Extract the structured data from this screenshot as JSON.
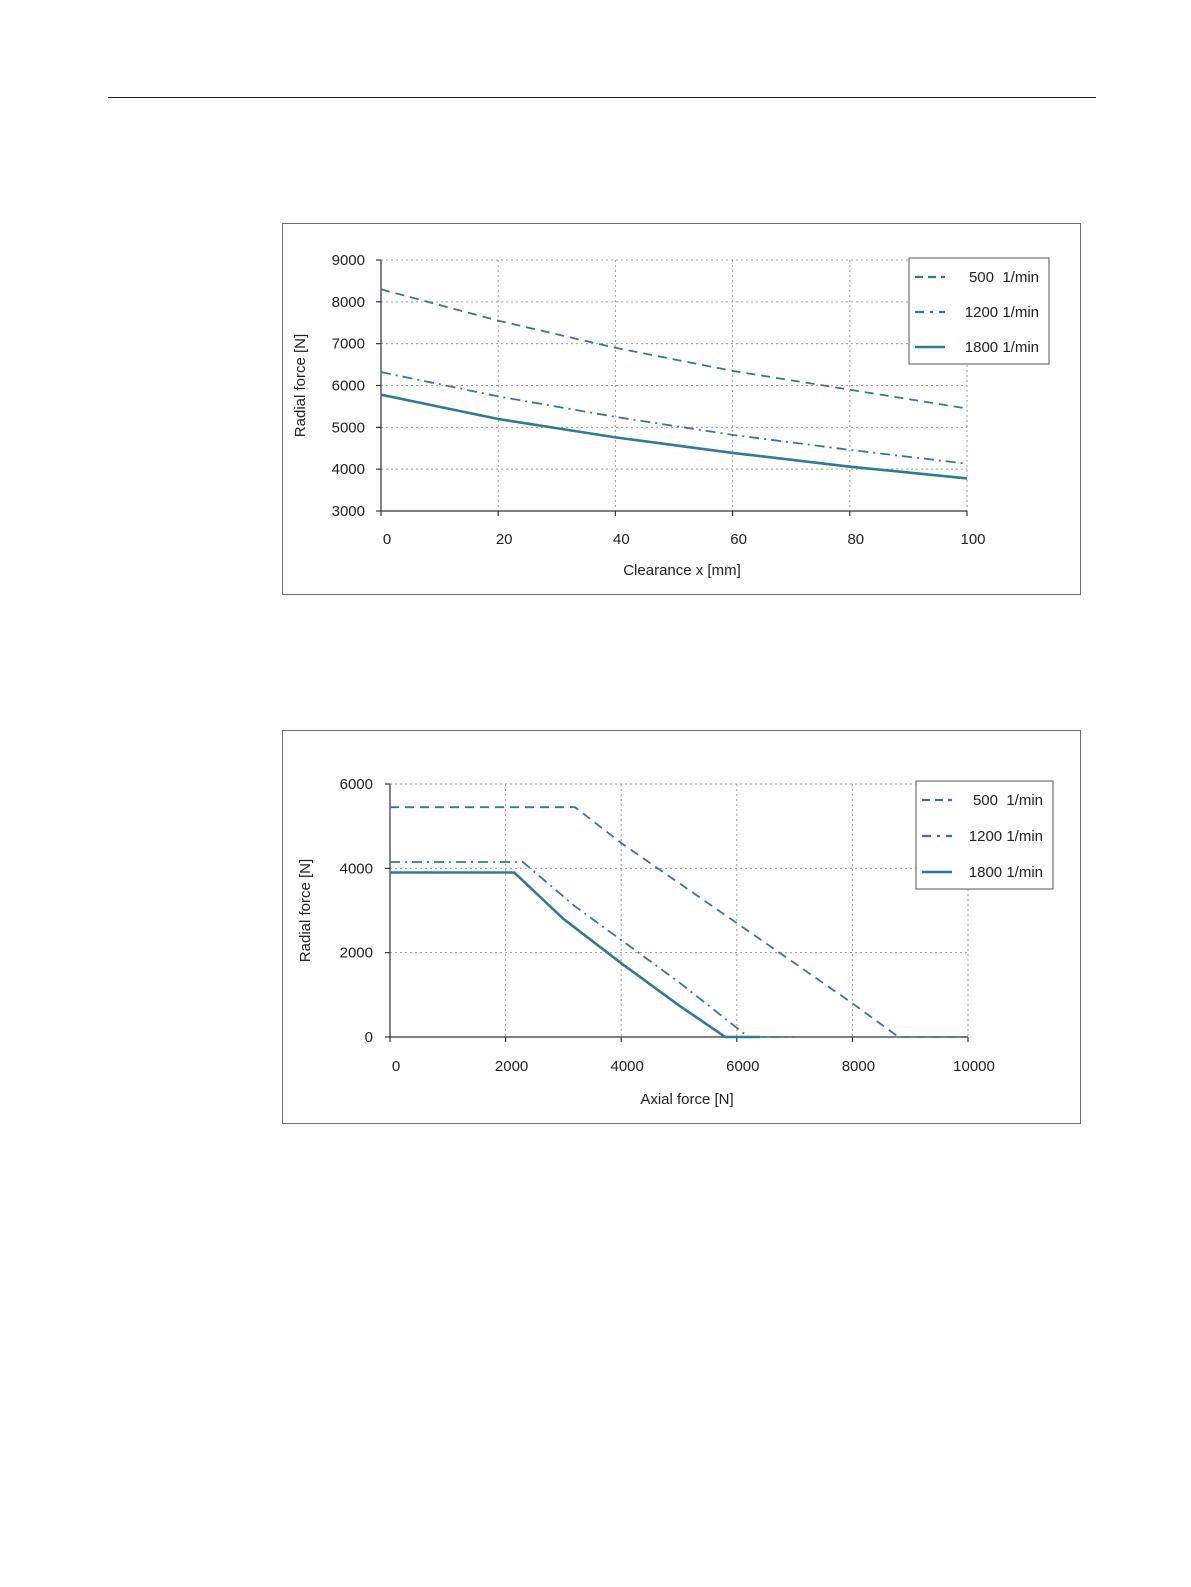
{
  "chart_data": [
    {
      "id": "chart1",
      "type": "line",
      "title": "",
      "xlabel": "Clearance x [mm]",
      "ylabel": "Radial force [N]",
      "xlim": [
        0,
        100
      ],
      "ylim": [
        3000,
        9000
      ],
      "xticks": [
        0,
        20,
        40,
        60,
        80,
        100
      ],
      "yticks": [
        3000,
        4000,
        5000,
        6000,
        7000,
        8000,
        9000
      ],
      "grid": true,
      "legend_position": "top-right",
      "series": [
        {
          "name": "500  1/min",
          "style": "dashed",
          "color": "#2e7a97",
          "x": [
            0,
            20,
            40,
            60,
            80,
            100
          ],
          "y": [
            8300,
            7550,
            6900,
            6350,
            5900,
            5450
          ]
        },
        {
          "name": "1200 1/min",
          "style": "dashdot",
          "color": "#2e7a97",
          "x": [
            0,
            20,
            40,
            60,
            80,
            100
          ],
          "y": [
            6320,
            5740,
            5250,
            4820,
            4460,
            4130
          ]
        },
        {
          "name": "1800 1/min",
          "style": "solid",
          "color": "#2e7a97",
          "x": [
            0,
            20,
            40,
            60,
            80,
            100
          ],
          "y": [
            5780,
            5200,
            4760,
            4390,
            4060,
            3780
          ]
        }
      ]
    },
    {
      "id": "chart2",
      "type": "line",
      "title": "",
      "xlabel": "Axial force [N]",
      "ylabel": "Radial force [N]",
      "xlim": [
        0,
        10000
      ],
      "ylim": [
        0,
        6000
      ],
      "xticks": [
        0,
        2000,
        4000,
        6000,
        8000,
        10000
      ],
      "yticks": [
        0,
        2000,
        4000,
        6000
      ],
      "grid": true,
      "legend_position": "top-right",
      "series": [
        {
          "name": "500  1/min",
          "style": "dashed",
          "color": "#2e7a97",
          "x": [
            0,
            3200,
            4000,
            6000,
            8000,
            8800,
            10000
          ],
          "y": [
            5450,
            5450,
            4600,
            2700,
            800,
            0,
            0
          ]
        },
        {
          "name": "1200 1/min",
          "style": "dashdot",
          "color": "#2e7a97",
          "x": [
            0,
            2300,
            3200,
            4000,
            5000,
            6200,
            7000
          ],
          "y": [
            4150,
            4150,
            3100,
            2300,
            1300,
            0,
            0
          ]
        },
        {
          "name": "1800 1/min",
          "style": "solid",
          "color": "#2e7a97",
          "x": [
            0,
            2150,
            3000,
            4000,
            5000,
            5800,
            6400
          ],
          "y": [
            3900,
            3900,
            2800,
            1750,
            750,
            0,
            0
          ]
        }
      ]
    }
  ]
}
